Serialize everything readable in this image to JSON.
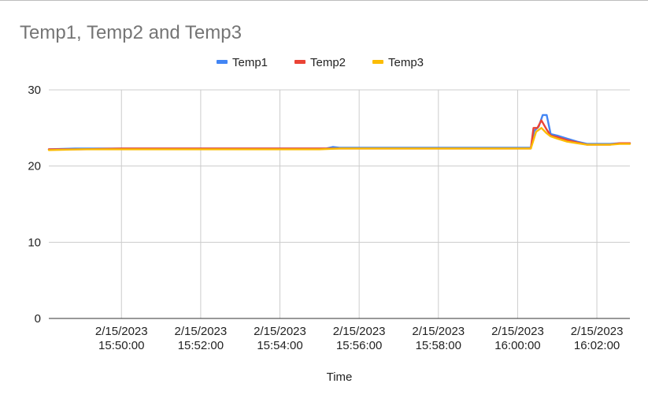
{
  "chart_data": {
    "type": "line",
    "title": "Temp1, Temp2 and Temp3",
    "xlabel": "Time",
    "ylabel": "",
    "ylim": [
      0,
      30
    ],
    "yticks": [
      "0",
      "10",
      "20",
      "30"
    ],
    "xlim": [
      "2/15/2023 15:48:10",
      "2/15/2023 16:02:50"
    ],
    "xticks": [
      {
        "x": "2/15/2023 15:50:00",
        "date": "2/15/2023",
        "time": "15:50:00"
      },
      {
        "x": "2/15/2023 15:52:00",
        "date": "2/15/2023",
        "time": "15:52:00"
      },
      {
        "x": "2/15/2023 15:54:00",
        "date": "2/15/2023",
        "time": "15:54:00"
      },
      {
        "x": "2/15/2023 15:56:00",
        "date": "2/15/2023",
        "time": "15:56:00"
      },
      {
        "x": "2/15/2023 15:58:00",
        "date": "2/15/2023",
        "time": "15:58:00"
      },
      {
        "x": "2/15/2023 16:00:00",
        "date": "2/15/2023",
        "time": "16:00:00"
      },
      {
        "x": "2/15/2023 16:02:00",
        "date": "2/15/2023",
        "time": "16:02:00"
      }
    ],
    "grid": true,
    "legend_position": "top",
    "series": [
      {
        "name": "Temp1",
        "color": "#4285f4",
        "points": [
          [
            "2/15/2023 15:48:10",
            22.2
          ],
          [
            "2/15/2023 15:48:50",
            22.3
          ],
          [
            "2/15/2023 15:49:30",
            22.3
          ],
          [
            "2/15/2023 15:50:00",
            22.3
          ],
          [
            "2/15/2023 15:52:00",
            22.3
          ],
          [
            "2/15/2023 15:54:00",
            22.3
          ],
          [
            "2/15/2023 15:55:10",
            22.3
          ],
          [
            "2/15/2023 15:55:20",
            22.5
          ],
          [
            "2/15/2023 15:55:30",
            22.4
          ],
          [
            "2/15/2023 15:56:00",
            22.4
          ],
          [
            "2/15/2023 15:58:00",
            22.4
          ],
          [
            "2/15/2023 16:00:00",
            22.4
          ],
          [
            "2/15/2023 16:00:20",
            22.4
          ],
          [
            "2/15/2023 16:00:25",
            24.6
          ],
          [
            "2/15/2023 16:00:32",
            25.2
          ],
          [
            "2/15/2023 16:00:38",
            26.7
          ],
          [
            "2/15/2023 16:00:44",
            26.7
          ],
          [
            "2/15/2023 16:00:50",
            24.2
          ],
          [
            "2/15/2023 16:01:00",
            24.0
          ],
          [
            "2/15/2023 16:01:15",
            23.6
          ],
          [
            "2/15/2023 16:01:30",
            23.2
          ],
          [
            "2/15/2023 16:01:45",
            22.9
          ],
          [
            "2/15/2023 16:02:00",
            22.9
          ],
          [
            "2/15/2023 16:02:20",
            22.9
          ],
          [
            "2/15/2023 16:02:35",
            23.0
          ],
          [
            "2/15/2023 16:02:50",
            23.0
          ]
        ]
      },
      {
        "name": "Temp2",
        "color": "#ea4335",
        "points": [
          [
            "2/15/2023 15:48:10",
            22.2
          ],
          [
            "2/15/2023 15:49:00",
            22.2
          ],
          [
            "2/15/2023 15:50:00",
            22.3
          ],
          [
            "2/15/2023 15:52:00",
            22.3
          ],
          [
            "2/15/2023 15:54:00",
            22.3
          ],
          [
            "2/15/2023 15:56:00",
            22.3
          ],
          [
            "2/15/2023 15:58:00",
            22.3
          ],
          [
            "2/15/2023 16:00:00",
            22.3
          ],
          [
            "2/15/2023 16:00:20",
            22.3
          ],
          [
            "2/15/2023 16:00:24",
            25.0
          ],
          [
            "2/15/2023 16:00:30",
            25.0
          ],
          [
            "2/15/2023 16:00:36",
            26.0
          ],
          [
            "2/15/2023 16:00:44",
            24.8
          ],
          [
            "2/15/2023 16:00:50",
            24.0
          ],
          [
            "2/15/2023 16:01:00",
            23.8
          ],
          [
            "2/15/2023 16:01:15",
            23.4
          ],
          [
            "2/15/2023 16:01:30",
            23.1
          ],
          [
            "2/15/2023 16:01:45",
            22.8
          ],
          [
            "2/15/2023 16:02:00",
            22.8
          ],
          [
            "2/15/2023 16:02:20",
            22.8
          ],
          [
            "2/15/2023 16:02:35",
            23.0
          ],
          [
            "2/15/2023 16:02:50",
            23.0
          ]
        ]
      },
      {
        "name": "Temp3",
        "color": "#fbbc04",
        "points": [
          [
            "2/15/2023 15:48:10",
            22.1
          ],
          [
            "2/15/2023 15:49:00",
            22.2
          ],
          [
            "2/15/2023 15:50:00",
            22.2
          ],
          [
            "2/15/2023 15:52:00",
            22.2
          ],
          [
            "2/15/2023 15:54:00",
            22.2
          ],
          [
            "2/15/2023 15:55:00",
            22.2
          ],
          [
            "2/15/2023 15:55:30",
            22.3
          ],
          [
            "2/15/2023 15:56:00",
            22.3
          ],
          [
            "2/15/2023 15:58:00",
            22.3
          ],
          [
            "2/15/2023 16:00:00",
            22.3
          ],
          [
            "2/15/2023 16:00:20",
            22.3
          ],
          [
            "2/15/2023 16:00:28",
            24.5
          ],
          [
            "2/15/2023 16:00:36",
            25.0
          ],
          [
            "2/15/2023 16:00:44",
            24.3
          ],
          [
            "2/15/2023 16:00:50",
            23.9
          ],
          [
            "2/15/2023 16:01:00",
            23.6
          ],
          [
            "2/15/2023 16:01:15",
            23.2
          ],
          [
            "2/15/2023 16:01:30",
            23.0
          ],
          [
            "2/15/2023 16:01:45",
            22.8
          ],
          [
            "2/15/2023 16:02:00",
            22.8
          ],
          [
            "2/15/2023 16:02:20",
            22.8
          ],
          [
            "2/15/2023 16:02:35",
            22.9
          ],
          [
            "2/15/2023 16:02:50",
            22.9
          ]
        ]
      }
    ]
  }
}
